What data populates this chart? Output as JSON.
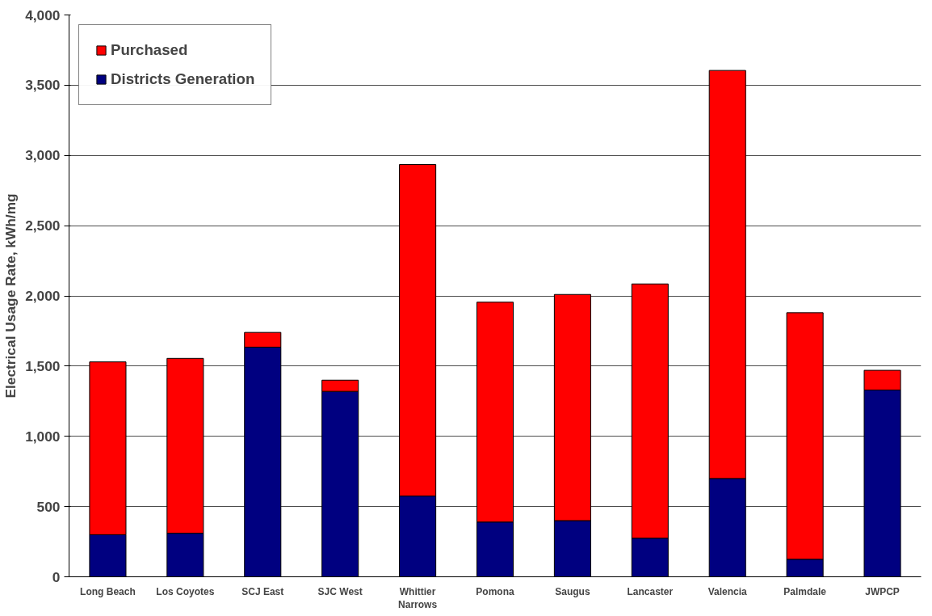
{
  "chart_data": {
    "type": "bar",
    "stacked": true,
    "ylabel": "Electrical Usage Rate, kWh/mg",
    "categories": [
      "Long Beach",
      "Los Coyotes",
      "SCJ East",
      "SJC West",
      "Whittier Narrows",
      "Pomona",
      "Saugus",
      "Lancaster",
      "Valencia",
      "Palmdale",
      "JWPCP"
    ],
    "series": [
      {
        "name": "Districts Generation",
        "color": "#000080",
        "values": [
          300,
          310,
          1635,
          1320,
          575,
          390,
          400,
          275,
          700,
          125,
          1330
        ]
      },
      {
        "name": "Purchased",
        "color": "#ff0000",
        "values": [
          1230,
          1245,
          105,
          80,
          2360,
          1565,
          1610,
          1810,
          2905,
          1755,
          140
        ]
      }
    ],
    "ylim": [
      0,
      4000
    ],
    "yticks": [
      {
        "value": 0,
        "label": "0"
      },
      {
        "value": 500,
        "label": "500"
      },
      {
        "value": 1000,
        "label": "1,000"
      },
      {
        "value": 1500,
        "label": "1,500"
      },
      {
        "value": 2000,
        "label": "2,000"
      },
      {
        "value": 2500,
        "label": "2,500"
      },
      {
        "value": 3000,
        "label": "3,000"
      },
      {
        "value": 3500,
        "label": "3,500"
      },
      {
        "value": 4000,
        "label": "4,000"
      }
    ],
    "grid": "y",
    "legend": "top left"
  }
}
